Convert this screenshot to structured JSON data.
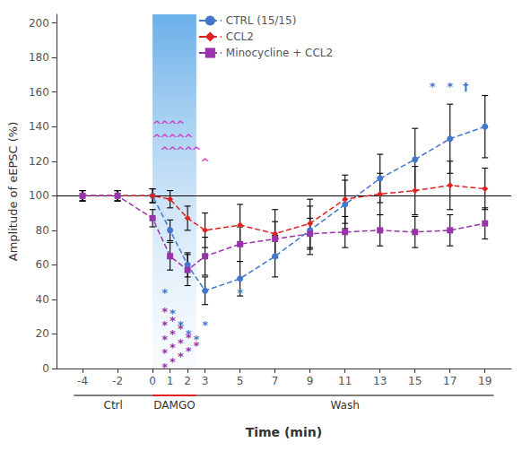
{
  "chart_data": {
    "type": "line",
    "xlabel": "Time (min)",
    "ylabel": "Amplitude of eEPSC (%)",
    "xlim": [
      -5.5,
      20.5
    ],
    "xticks": [
      -4,
      -2,
      0,
      2,
      1,
      3,
      5,
      7,
      9,
      11,
      13,
      15,
      17,
      19
    ],
    "ylim": [
      0,
      205
    ],
    "yticks": [
      0,
      20,
      40,
      60,
      80,
      100,
      120,
      140,
      160,
      180,
      200
    ],
    "grid": false,
    "legend": "upper center",
    "x": [
      -4,
      -2,
      0,
      1,
      2,
      3,
      5,
      7,
      9,
      11,
      13,
      15,
      17,
      19
    ],
    "series": [
      {
        "name": "CTRL (15/15)",
        "color": "#4477cc",
        "marker": "circle",
        "line_style": "dashed",
        "values": [
          100,
          100,
          100,
          80,
          60,
          45,
          52,
          65,
          80,
          95,
          110,
          121,
          133,
          140
        ],
        "errors": [
          3,
          3,
          4,
          6,
          7,
          8,
          10,
          12,
          14,
          14,
          14,
          18,
          20,
          18
        ]
      },
      {
        "name": "CCL2",
        "color": "#dd2222",
        "marker": "diamond",
        "line_style": "dashed",
        "values": [
          100,
          100,
          100,
          98,
          87,
          80,
          83,
          78,
          84,
          98,
          101,
          103,
          106,
          104
        ],
        "errors": [
          3,
          3,
          4,
          5,
          7,
          10,
          12,
          14,
          14,
          14,
          12,
          14,
          14,
          12
        ]
      },
      {
        "name": "Minocycline + CCL2",
        "color": "#9933aa",
        "marker": "square",
        "line_style": "dashed",
        "values": [
          100,
          100,
          87,
          65,
          57,
          65,
          72,
          75,
          78,
          79,
          80,
          79,
          80,
          84
        ],
        "errors": [
          3,
          3,
          5,
          8,
          9,
          11,
          10,
          10,
          9,
          9,
          9,
          9,
          9,
          9
        ]
      }
    ],
    "reference_lines": [
      {
        "y": 100,
        "color": "#000000"
      }
    ],
    "shaded_regions": [
      {
        "x": [
          0,
          2.5
        ]
      }
    ],
    "periods": [
      {
        "label": "Ctrl",
        "start": -4.5,
        "end": 0,
        "color": "#000000"
      },
      {
        "label": "DAMGO",
        "start": 0,
        "end": 2.5,
        "color": "#dd2222"
      },
      {
        "label": "Wash",
        "start": 2.5,
        "end": 19.5,
        "color": "#000000"
      }
    ],
    "annotations": [
      {
        "text": "^",
        "color": "#cc44cc",
        "points": [
          [
            0.25,
            141
          ],
          [
            0.7,
            141
          ],
          [
            1.15,
            141
          ],
          [
            1.6,
            141
          ],
          [
            0.25,
            133
          ],
          [
            0.7,
            133
          ],
          [
            1.15,
            133
          ],
          [
            1.6,
            133
          ],
          [
            2.05,
            133
          ],
          [
            0.7,
            126
          ],
          [
            1.15,
            126
          ],
          [
            1.6,
            126
          ],
          [
            2.05,
            126
          ],
          [
            2.5,
            126
          ],
          [
            3.0,
            119
          ]
        ]
      },
      {
        "text": "*",
        "color": "#4477cc",
        "points": [
          [
            0.7,
            44
          ],
          [
            1.15,
            32
          ],
          [
            1.6,
            25
          ],
          [
            2.05,
            20
          ],
          [
            2.5,
            17
          ],
          [
            3.0,
            25
          ],
          [
            5.0,
            44
          ]
        ]
      },
      {
        "text": "*",
        "color": "#9933aa",
        "points": [
          [
            0.7,
            33
          ],
          [
            1.15,
            28
          ],
          [
            1.6,
            23
          ],
          [
            2.05,
            18
          ],
          [
            2.5,
            13
          ],
          [
            0.7,
            25
          ],
          [
            1.15,
            20
          ],
          [
            1.6,
            15
          ],
          [
            2.05,
            10
          ],
          [
            0.7,
            17
          ],
          [
            1.15,
            12
          ],
          [
            1.6,
            7
          ],
          [
            0.7,
            9
          ],
          [
            1.15,
            4
          ],
          [
            0.7,
            1
          ]
        ]
      },
      {
        "text": "*",
        "color": "#4477cc",
        "points": [
          [
            16.0,
            163
          ],
          [
            17.0,
            163
          ]
        ]
      },
      {
        "text": "†",
        "color": "#4477cc",
        "points": [
          [
            17.9,
            163
          ]
        ]
      }
    ]
  }
}
